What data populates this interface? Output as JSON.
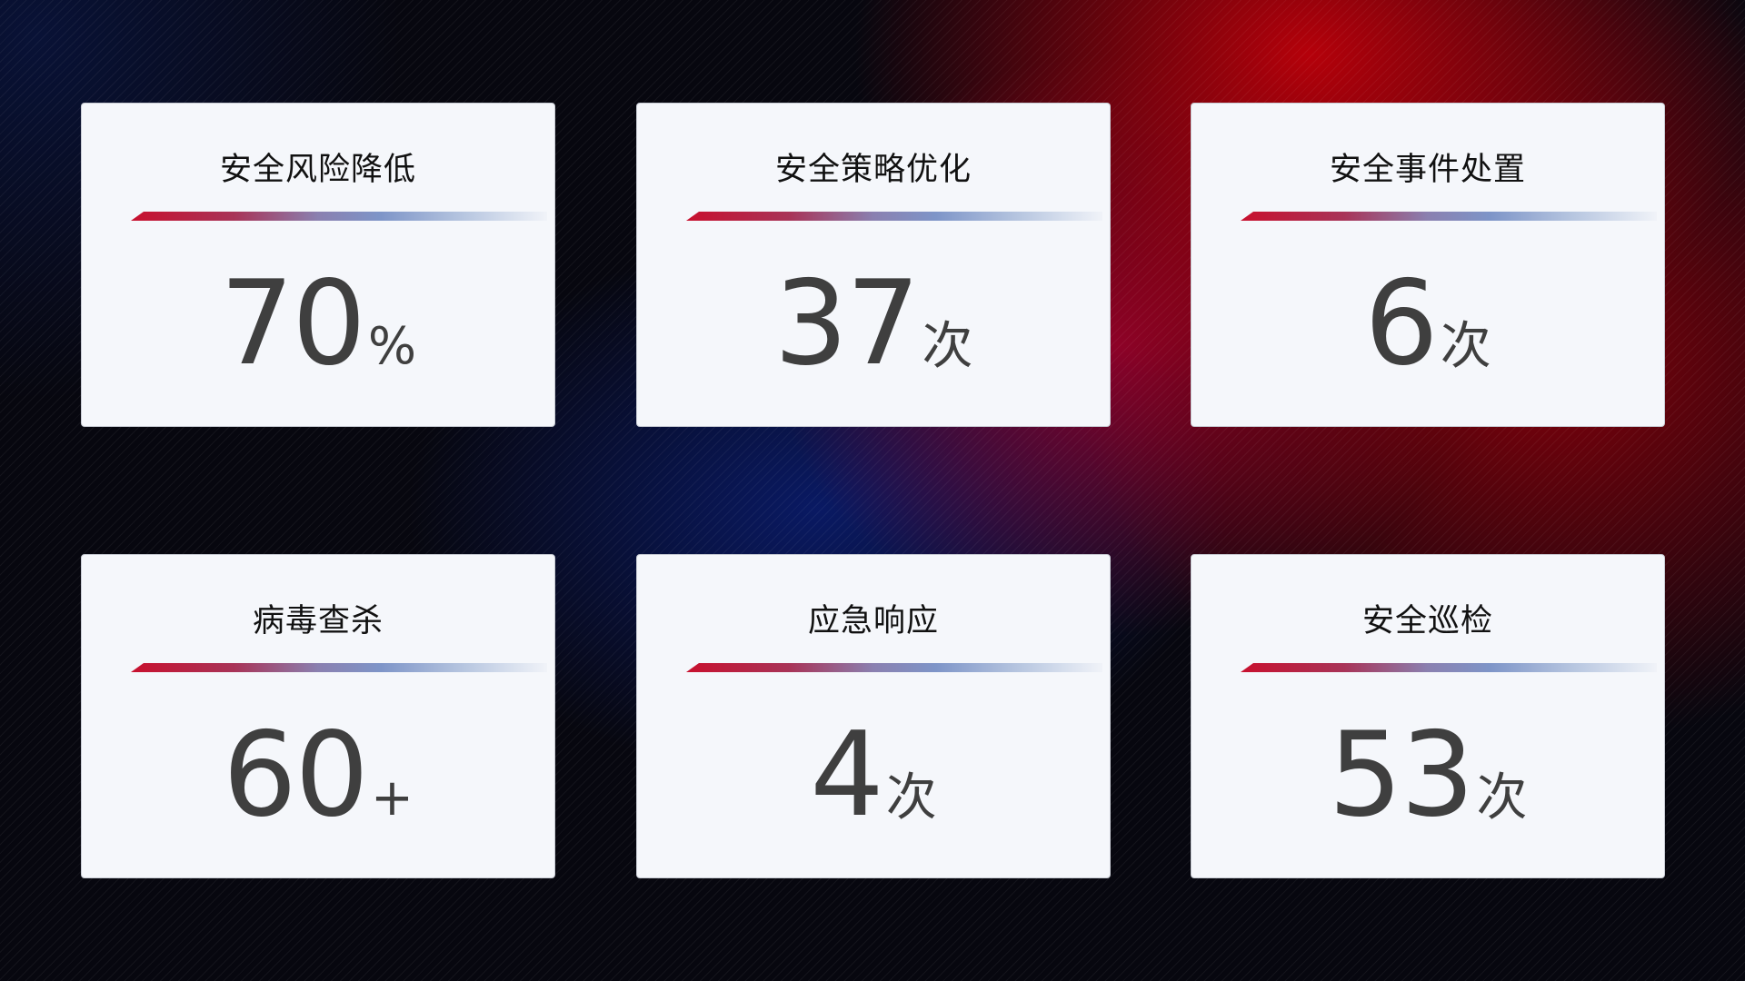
{
  "cards": [
    {
      "title": "安全风险降低",
      "value": "70",
      "unit": "%"
    },
    {
      "title": "安全策略优化",
      "value": "37",
      "unit": "次"
    },
    {
      "title": "安全事件处置",
      "value": "6",
      "unit": "次"
    },
    {
      "title": "病毒查杀",
      "value": "60",
      "unit": "+"
    },
    {
      "title": "应急响应",
      "value": "4",
      "unit": "次"
    },
    {
      "title": "安全巡检",
      "value": "53",
      "unit": "次"
    }
  ],
  "colors": {
    "accent_red": "#c8102e",
    "accent_blue": "#7e95c8",
    "card_bg": "#f5f7fb",
    "value_text": "#3f3f3f"
  }
}
